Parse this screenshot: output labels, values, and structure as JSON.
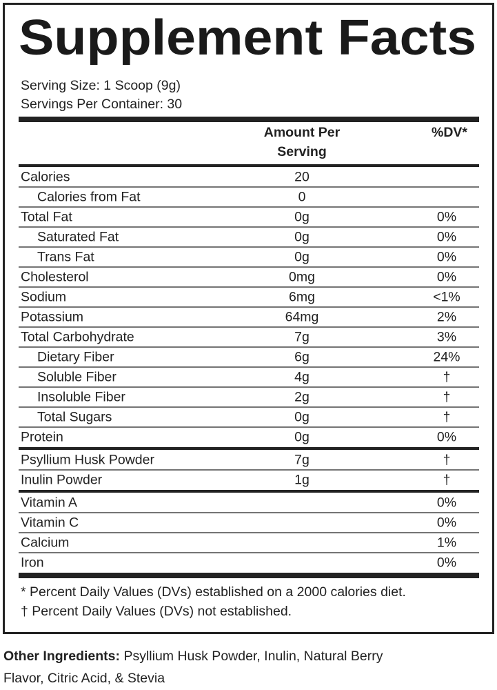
{
  "title": "Supplement Facts",
  "serving_size": "Serving Size: 1 Scoop (9g)",
  "servings_per_container": "Servings Per Container: 30",
  "header": {
    "amount": [
      "Amount Per",
      "Serving"
    ],
    "dv": "%DV*"
  },
  "sections": [
    {
      "rows": [
        {
          "label": "Calories",
          "amount": "20",
          "sub": [
            {
              "label": "Calories from Fat",
              "amount": "0"
            }
          ]
        },
        {
          "label": "Total Fat",
          "amount": "0g",
          "dv": "0%",
          "sub": [
            {
              "label": "Saturated Fat",
              "amount": "0g",
              "dv": "0%"
            },
            {
              "label": "Trans Fat",
              "amount": "0g",
              "dv": "0%"
            }
          ]
        },
        {
          "label": "Cholesterol",
          "amount": "0mg",
          "dv": "0%"
        },
        {
          "label": "Sodium",
          "amount": "6mg",
          "dv": "<1%"
        },
        {
          "label": "Potassium",
          "amount": "64mg",
          "dv": "2%"
        },
        {
          "label": "Total Carbohydrate",
          "amount": "7g",
          "dv": "3%",
          "sub": [
            {
              "label": "Dietary Fiber",
              "amount": "6g",
              "dv": "24%"
            },
            {
              "label": "Soluble Fiber",
              "amount": "4g",
              "dv": "†"
            },
            {
              "label": "Insoluble Fiber",
              "amount": "2g",
              "dv": "†"
            },
            {
              "label": "Total Sugars",
              "amount": "0g",
              "dv": "†"
            }
          ]
        },
        {
          "label": "Protein",
          "amount": "0g",
          "dv": "0%"
        }
      ]
    },
    {
      "rows": [
        {
          "label": "Psyllium Husk Powder",
          "amount": "7g",
          "dv": "†"
        },
        {
          "label": "Inulin Powder",
          "amount": "1g",
          "dv": "†"
        }
      ]
    },
    {
      "rows": [
        {
          "label": "Vitamin A",
          "dv": "0%"
        },
        {
          "label": "Vitamin C",
          "dv": "0%"
        },
        {
          "label": "Calcium",
          "dv": "1%"
        },
        {
          "label": "Iron",
          "dv": "0%"
        }
      ]
    }
  ],
  "footnotes": [
    "* Percent Daily Values (DVs) established on a 2000 calories diet.",
    "† Percent Daily Values (DVs) not established."
  ],
  "other_ingredients": {
    "label": "Other Ingredients:",
    "text": [
      "Psyllium Husk Powder, Inulin, Natural Berry",
      "Flavor, Citric Acid, & Stevia"
    ]
  }
}
